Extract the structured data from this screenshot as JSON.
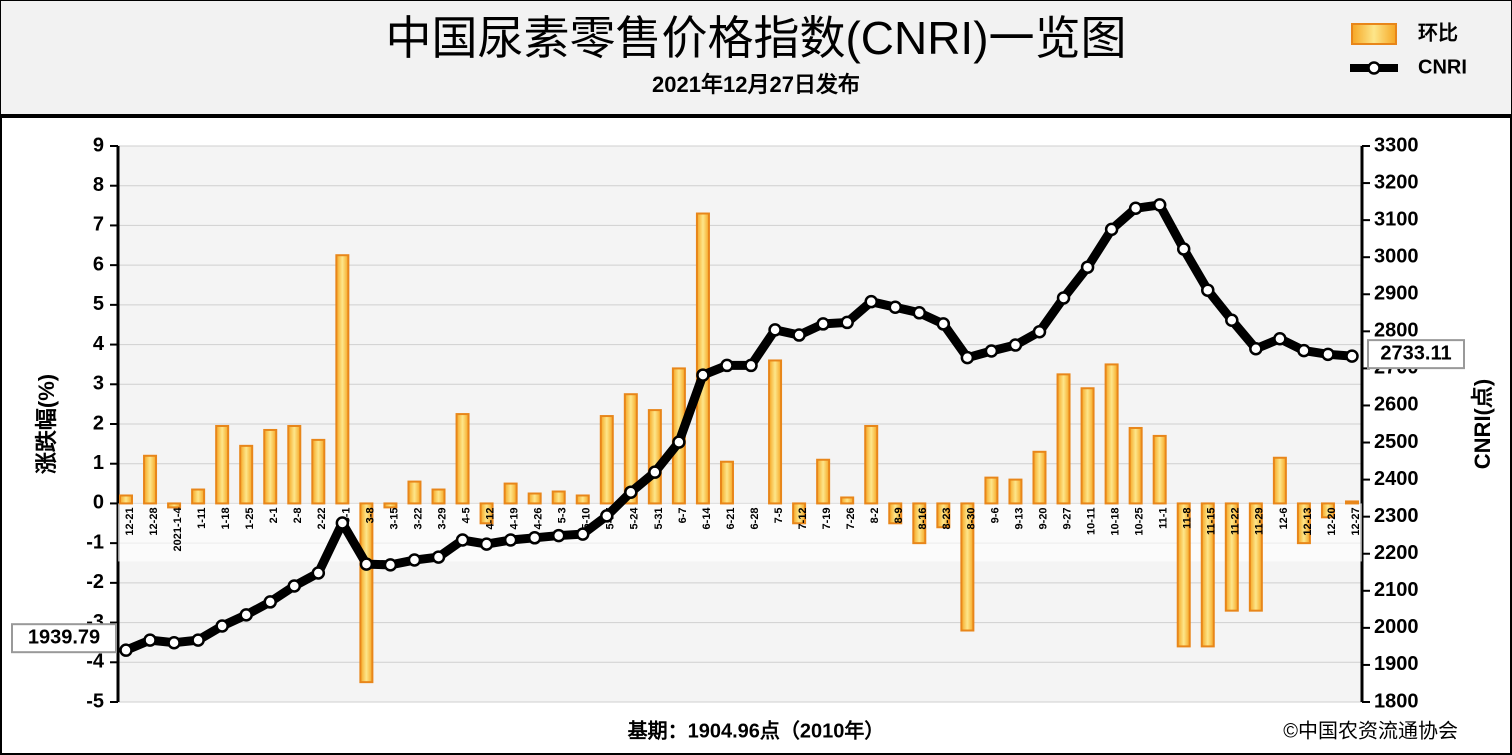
{
  "chart_data": {
    "type": "combo",
    "title": "中国尿素零售价格指数(CNRI)一览图",
    "subtitle": "2021年12月27日发布",
    "y_label": "涨跌幅(%)",
    "y2_label": "CNRI(点)",
    "footnote": "基期：1904.96点（2010年）",
    "credit": "©中国农资流通协会",
    "legend": "top-right",
    "grid": true,
    "categories": [
      "12-21",
      "12-28",
      "2021-1-4",
      "1-11",
      "1-18",
      "1-25",
      "2-1",
      "2-8",
      "2-22",
      "3-1",
      "3-8",
      "3-15",
      "3-22",
      "3-29",
      "4-5",
      "4-12",
      "4-19",
      "4-26",
      "5-3",
      "5-10",
      "5-17",
      "5-24",
      "5-31",
      "6-7",
      "6-14",
      "6-21",
      "6-28",
      "7-5",
      "7-12",
      "7-19",
      "7-26",
      "8-2",
      "8-9",
      "8-16",
      "8-23",
      "8-30",
      "9-6",
      "9-13",
      "9-20",
      "9-27",
      "10-11",
      "10-18",
      "10-25",
      "11-1",
      "11-8",
      "11-15",
      "11-22",
      "11-29",
      "12-6",
      "12-13",
      "12-20",
      "12-27"
    ],
    "series": [
      {
        "name": "环比",
        "type": "bar",
        "axis": "y",
        "color": "#e8861a",
        "values": [
          0.2,
          1.2,
          -0.1,
          0.35,
          1.95,
          1.45,
          1.85,
          1.95,
          1.6,
          6.25,
          -4.5,
          -0.1,
          0.55,
          0.35,
          2.25,
          -0.5,
          0.5,
          0.25,
          0.3,
          0.2,
          2.2,
          2.75,
          2.35,
          3.4,
          7.3,
          1.05,
          0,
          3.6,
          -0.5,
          1.1,
          0.15,
          1.95,
          -0.5,
          -1.0,
          -0.6,
          -3.2,
          0.65,
          0.6,
          1.3,
          3.25,
          2.9,
          3.5,
          1.9,
          1.7,
          -3.6,
          -3.6,
          -2.7,
          -2.7,
          1.15,
          -1.0,
          -0.35,
          0.05
        ]
      },
      {
        "name": "CNRI",
        "type": "line",
        "axis": "y2",
        "color": "#000000",
        "values": [
          1939.79,
          1967,
          1960,
          1967,
          2005,
          2035,
          2070,
          2113,
          2148,
          2283,
          2172,
          2170,
          2183,
          2191,
          2237,
          2226,
          2237,
          2243,
          2249,
          2253,
          2302,
          2366,
          2420,
          2501,
          2682,
          2708,
          2708,
          2804,
          2790,
          2820,
          2824,
          2880,
          2865,
          2850,
          2820,
          2729,
          2747,
          2763,
          2799,
          2890,
          2973,
          3075,
          3132,
          3141,
          3022,
          2911,
          2830,
          2753,
          2780,
          2748,
          2738,
          2733.11
        ]
      }
    ],
    "ylim": [
      -5,
      9
    ],
    "yticks": [
      -5,
      -4,
      -3,
      -2,
      -1,
      0,
      1,
      2,
      3,
      4,
      5,
      6,
      7,
      8,
      9
    ],
    "y2lim": [
      1800,
      3300
    ],
    "y2ticks": [
      1800,
      1900,
      2000,
      2100,
      2200,
      2300,
      2400,
      2500,
      2600,
      2700,
      2800,
      2900,
      3000,
      3100,
      3200,
      3300
    ]
  }
}
